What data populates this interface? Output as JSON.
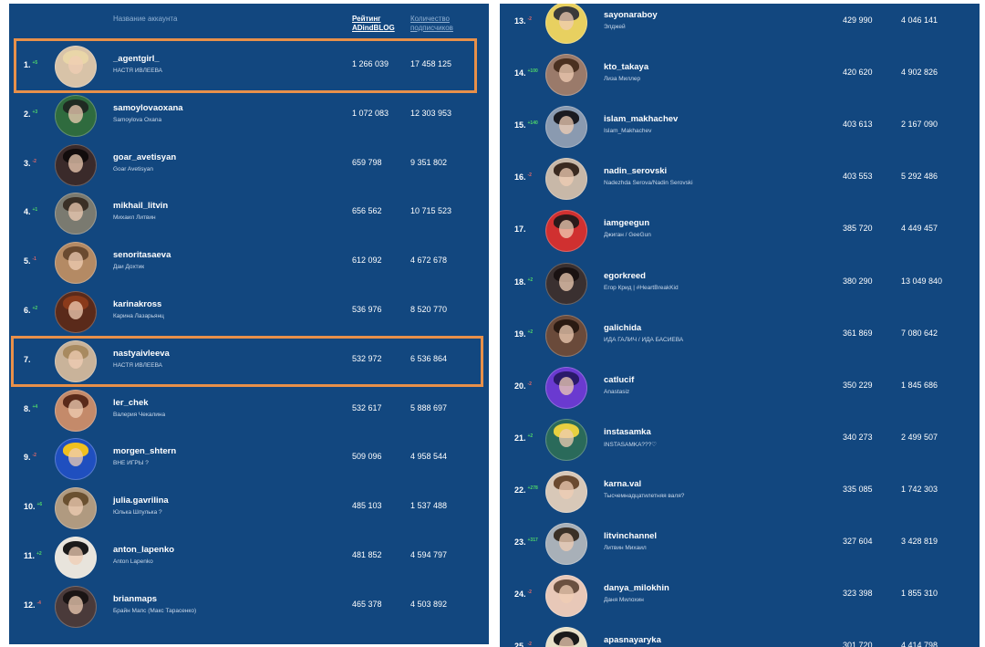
{
  "header": {
    "name_col": "Название аккаунта",
    "rank_col": "Рейтинг ADindBLOG",
    "subs_col": "Количество подписчиков"
  },
  "left_rows": [
    {
      "num": "1.",
      "chg": "+5",
      "chg_dir": "up",
      "username": "_agentgirl_",
      "display": "НАСТЯ ИВЛЕЕВА",
      "rank": "1 266 039",
      "subs": "17 458 125",
      "av_bg": "#d8c3a8",
      "hair": "#e9d6a8"
    },
    {
      "num": "2.",
      "chg": "+3",
      "chg_dir": "up",
      "username": "samoylovaoxana",
      "display": "Samoylova Oxana",
      "rank": "1 072 083",
      "subs": "12 303 953",
      "av_bg": "#2f6b3e",
      "hair": "#1f2a22"
    },
    {
      "num": "3.",
      "chg": "-2",
      "chg_dir": "down",
      "username": "goar_avetisyan",
      "display": "Goar Avetisyan",
      "rank": "659 798",
      "subs": "9 351 802",
      "av_bg": "#3a2a2a",
      "hair": "#120c0c"
    },
    {
      "num": "4.",
      "chg": "+1",
      "chg_dir": "up",
      "username": "mikhail_litvin",
      "display": "Михаил Литвин",
      "rank": "656 562",
      "subs": "10 715 523",
      "av_bg": "#7a7a70",
      "hair": "#3a3026"
    },
    {
      "num": "5.",
      "chg": "-1",
      "chg_dir": "down",
      "username": "senoritasaeva",
      "display": "Даи Дохтик",
      "rank": "612 092",
      "subs": "4 672 678",
      "av_bg": "#b48a64",
      "hair": "#6a4a30"
    },
    {
      "num": "6.",
      "chg": "+2",
      "chg_dir": "up",
      "username": "karinakross",
      "display": "Карина Лазарьянц",
      "rank": "536 976",
      "subs": "8 520 770",
      "av_bg": "#5a2a1a",
      "hair": "#8a3a1a"
    },
    {
      "num": "7.",
      "chg": "",
      "chg_dir": "up",
      "username": "nastyaivleeva",
      "display": "НАСТЯ ИВЛЕЕВА",
      "rank": "532 972",
      "subs": "6 536 864",
      "av_bg": "#c9b39a",
      "hair": "#a88a60"
    },
    {
      "num": "8.",
      "chg": "+4",
      "chg_dir": "up",
      "username": "ler_chek",
      "display": "Валерия Чекалина",
      "rank": "532 617",
      "subs": "5 888 697",
      "av_bg": "#c48a6a",
      "hair": "#5a2a1a"
    },
    {
      "num": "9.",
      "chg": "-2",
      "chg_dir": "down",
      "username": "morgen_shtern",
      "display": "ВНЕ ИГРЫ ?",
      "rank": "509 096",
      "subs": "4 958 544",
      "av_bg": "#1f4fbf",
      "hair": "#f0c020"
    },
    {
      "num": "10.",
      "chg": "+6",
      "chg_dir": "up",
      "username": "julia.gavrilina",
      "display": "Юлька Шпулька ?",
      "rank": "485 103",
      "subs": "1 537 488",
      "av_bg": "#b09a80",
      "hair": "#6a5030"
    },
    {
      "num": "11.",
      "chg": "+2",
      "chg_dir": "up",
      "username": "anton_lapenko",
      "display": "Anton Lapenko",
      "rank": "481 852",
      "subs": "4 594 797",
      "av_bg": "#e8e4dc",
      "hair": "#1a1a1a"
    },
    {
      "num": "12.",
      "chg": "-4",
      "chg_dir": "down",
      "username": "brianmaps",
      "display": "Брайн Мапс (Макс Тарасенко)",
      "rank": "465 378",
      "subs": "4 503 892",
      "av_bg": "#4a3a3a",
      "hair": "#1a1414"
    }
  ],
  "right_rows": [
    {
      "num": "13.",
      "chg": "-2",
      "chg_dir": "down",
      "username": "sayonaraboy",
      "display": "Элджей",
      "rank": "429 990",
      "subs": "4 046 141",
      "av_bg": "#e8d060",
      "hair": "#3a3a3a"
    },
    {
      "num": "14.",
      "chg": "+100",
      "chg_dir": "up",
      "username": "kto_takaya",
      "display": "Лиза Миллер",
      "rank": "420 620",
      "subs": "4 902 826",
      "av_bg": "#9a7a6a",
      "hair": "#4a3020"
    },
    {
      "num": "15.",
      "chg": "+140",
      "chg_dir": "up",
      "username": "islam_makhachev",
      "display": "Islam_Makhachev",
      "rank": "403 613",
      "subs": "2 167 090",
      "av_bg": "#8a9ab0",
      "hair": "#1a1a20"
    },
    {
      "num": "16.",
      "chg": "-2",
      "chg_dir": "down",
      "username": "nadin_serovski",
      "display": "Nadezhda Serova/Nadin Serovski",
      "rank": "403 553",
      "subs": "5 292 486",
      "av_bg": "#c8b8a8",
      "hair": "#3a2a20"
    },
    {
      "num": "17.",
      "chg": "",
      "chg_dir": "up",
      "username": "iamgeegun",
      "display": "Джиган / GeeGun",
      "rank": "385 720",
      "subs": "4 449 457",
      "av_bg": "#d03030",
      "hair": "#2a1a1a"
    },
    {
      "num": "18.",
      "chg": "+2",
      "chg_dir": "up",
      "username": "egorkreed",
      "display": "Егор Крид | #HeartBreakKid",
      "rank": "380 290",
      "subs": "13 049 840",
      "av_bg": "#3a3030",
      "hair": "#1a1212"
    },
    {
      "num": "19.",
      "chg": "+2",
      "chg_dir": "up",
      "username": "galichida",
      "display": "ИДА ГАЛИЧ / ИДА БАСИЕВА",
      "rank": "361 869",
      "subs": "7 080 642",
      "av_bg": "#6a4a3a",
      "hair": "#2a1a12"
    },
    {
      "num": "20.",
      "chg": "-2",
      "chg_dir": "down",
      "username": "catlucif",
      "display": "Anastasiz",
      "rank": "350 229",
      "subs": "1 845 686",
      "av_bg": "#6a3ad0",
      "hair": "#2a1a6a"
    },
    {
      "num": "21.",
      "chg": "+2",
      "chg_dir": "up",
      "username": "instasamka",
      "display": "INSTASAMKA???♡",
      "rank": "340 273",
      "subs": "2 499 507",
      "av_bg": "#2a6a5a",
      "hair": "#e8d040"
    },
    {
      "num": "22.",
      "chg": "+278",
      "chg_dir": "up",
      "username": "karna.val",
      "display": "Тысчемнадцатилетняя валя?",
      "rank": "335 085",
      "subs": "1 742 303",
      "av_bg": "#d8c8b8",
      "hair": "#6a4a30"
    },
    {
      "num": "23.",
      "chg": "+317",
      "chg_dir": "up",
      "username": "litvinchannel",
      "display": "Литвин Михаил",
      "rank": "327 604",
      "subs": "3 428 819",
      "av_bg": "#a8b0b8",
      "hair": "#3a3026"
    },
    {
      "num": "24.",
      "chg": "-2",
      "chg_dir": "down",
      "username": "danya_milokhin",
      "display": "Даня Милохин",
      "rank": "323 398",
      "subs": "1 855 310",
      "av_bg": "#e8c8b8",
      "hair": "#6a5040"
    },
    {
      "num": "25.",
      "chg": "-2",
      "chg_dir": "down",
      "username": "apasnayaryka",
      "display": "",
      "rank": "301 720",
      "subs": "4 414 798",
      "av_bg": "#e8e0c8",
      "hair": "#1a1a1a"
    }
  ],
  "colors": {
    "panel_bg": "#12477f",
    "highlight": "#e8904a",
    "change_up": "#4fd86a",
    "change_down": "#e46a6a"
  }
}
